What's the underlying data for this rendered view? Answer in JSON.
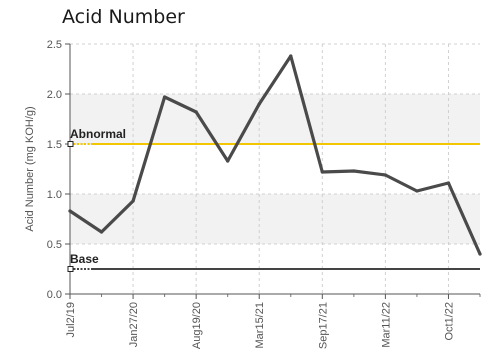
{
  "chart_data": {
    "type": "line",
    "title": "Acid Number",
    "xlabel": "",
    "ylabel": "Acid Number (mg KOH/g)",
    "ylim": [
      0,
      2.5
    ],
    "yticks": [
      "0.0",
      "0.5",
      "1.0",
      "1.5",
      "2.0",
      "2.5"
    ],
    "xticks": [
      "Jul2/19",
      "Jan27/20",
      "Aug19/20",
      "Mar15/21",
      "Sep17/21",
      "Mar11/22",
      "Oct1/22"
    ],
    "grid": true,
    "series": [
      {
        "values": [
          0.83,
          0.62,
          0.93,
          1.97,
          1.82,
          1.33,
          1.9,
          2.38,
          1.22,
          1.23,
          1.19,
          1.03,
          1.11,
          0.4
        ]
      }
    ],
    "reference_lines": [
      {
        "label": "Abnormal",
        "value": 1.5,
        "color": "#f2c600"
      },
      {
        "label": "Base",
        "value": 0.25,
        "color": "#444444"
      }
    ],
    "colors": {
      "line": "#4a4a4a",
      "band": "#f2f2f2",
      "grid": "#d0d0d0"
    }
  }
}
